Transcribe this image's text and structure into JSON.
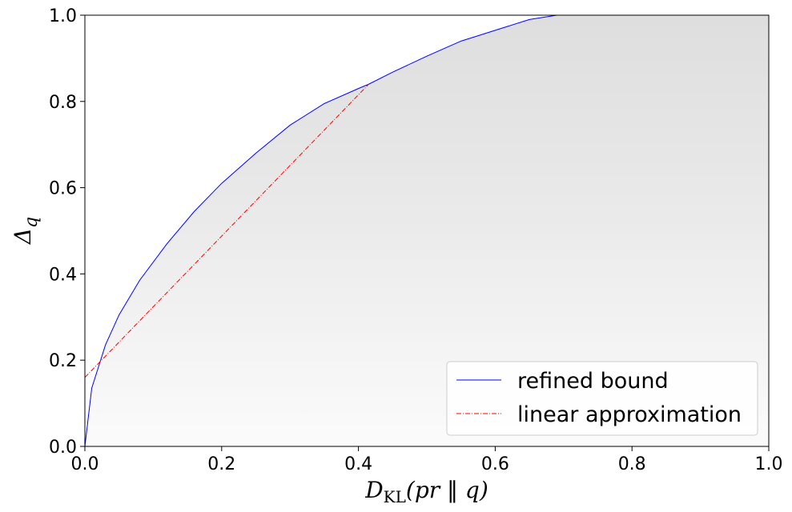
{
  "chart_data": {
    "type": "line",
    "xlabel": {
      "main": "D",
      "sub": "KL",
      "rest": "(pr ‖ q)"
    },
    "ylabel": {
      "main": "Δ",
      "sub": "q"
    },
    "xlim": [
      0.0,
      1.0
    ],
    "ylim": [
      0.0,
      1.0
    ],
    "xticks": [
      "0.0",
      "0.2",
      "0.4",
      "0.6",
      "0.8",
      "1.0"
    ],
    "yticks": [
      "0.0",
      "0.2",
      "0.4",
      "0.6",
      "0.8",
      "1.0"
    ],
    "grid": false,
    "legend_position": "bottom-right",
    "background_shading": "gray scatter density region below the bound",
    "series": [
      {
        "name": "refined bound",
        "style": "solid",
        "color": "#0000ff",
        "x": [
          0.0,
          0.01,
          0.03,
          0.05,
          0.08,
          0.12,
          0.16,
          0.2,
          0.25,
          0.3,
          0.35,
          0.4,
          0.415,
          0.45,
          0.5,
          0.55,
          0.6,
          0.65,
          0.69
        ],
        "y": [
          0.0,
          0.135,
          0.235,
          0.305,
          0.385,
          0.47,
          0.545,
          0.61,
          0.68,
          0.745,
          0.795,
          0.83,
          0.84,
          0.868,
          0.905,
          0.94,
          0.965,
          0.99,
          1.0
        ]
      },
      {
        "name": "linear approximation",
        "style": "dashdot",
        "color": "#ff0000",
        "x": [
          0.0,
          0.415
        ],
        "y": [
          0.16,
          0.84
        ]
      }
    ]
  }
}
